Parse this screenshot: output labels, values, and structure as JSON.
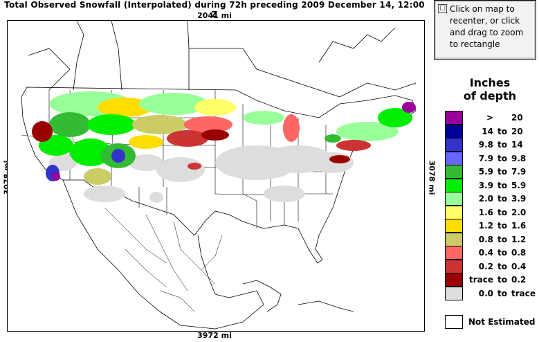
{
  "title": "Total Observed Snowfall (Interpolated) during 72h preceding 2009 December 14, 12:00 Z",
  "dist_top": "2041 mi",
  "dist_bottom": "3972 mi",
  "dist_left": "3078 mi",
  "dist_right": "3078 mi",
  "info_box": {
    "icon": "info-icon",
    "text": "Click on map to recenter, or click and drag to zoom to rectangle"
  },
  "legend": {
    "title_line1": "Inches",
    "title_line2": "of depth",
    "items": [
      {
        "low": ">",
        "to": "",
        "high": "20",
        "color": "#990099"
      },
      {
        "low": "14",
        "to": "to",
        "high": "20",
        "color": "#000099"
      },
      {
        "low": "9.8",
        "to": "to",
        "high": "14",
        "color": "#3333cc"
      },
      {
        "low": "7.9",
        "to": "to",
        "high": "9.8",
        "color": "#6666ff"
      },
      {
        "low": "5.9",
        "to": "to",
        "high": "7.9",
        "color": "#33bb33"
      },
      {
        "low": "3.9",
        "to": "to",
        "high": "5.9",
        "color": "#00ee00"
      },
      {
        "low": "2.0",
        "to": "to",
        "high": "3.9",
        "color": "#99ff99"
      },
      {
        "low": "1.6",
        "to": "to",
        "high": "2.0",
        "color": "#ffff66"
      },
      {
        "low": "1.2",
        "to": "to",
        "high": "1.6",
        "color": "#ffdd00"
      },
      {
        "low": "0.8",
        "to": "to",
        "high": "1.2",
        "color": "#cccc66"
      },
      {
        "low": "0.4",
        "to": "to",
        "high": "0.8",
        "color": "#ff6666"
      },
      {
        "low": "0.2",
        "to": "to",
        "high": "0.4",
        "color": "#cc3333"
      },
      {
        "low": "trace",
        "to": "to",
        "high": "0.2",
        "color": "#990000"
      },
      {
        "low": "0.0",
        "to": "to",
        "high": "trace",
        "color": "#dddddd"
      }
    ],
    "not_estimated": "Not Estimated"
  }
}
